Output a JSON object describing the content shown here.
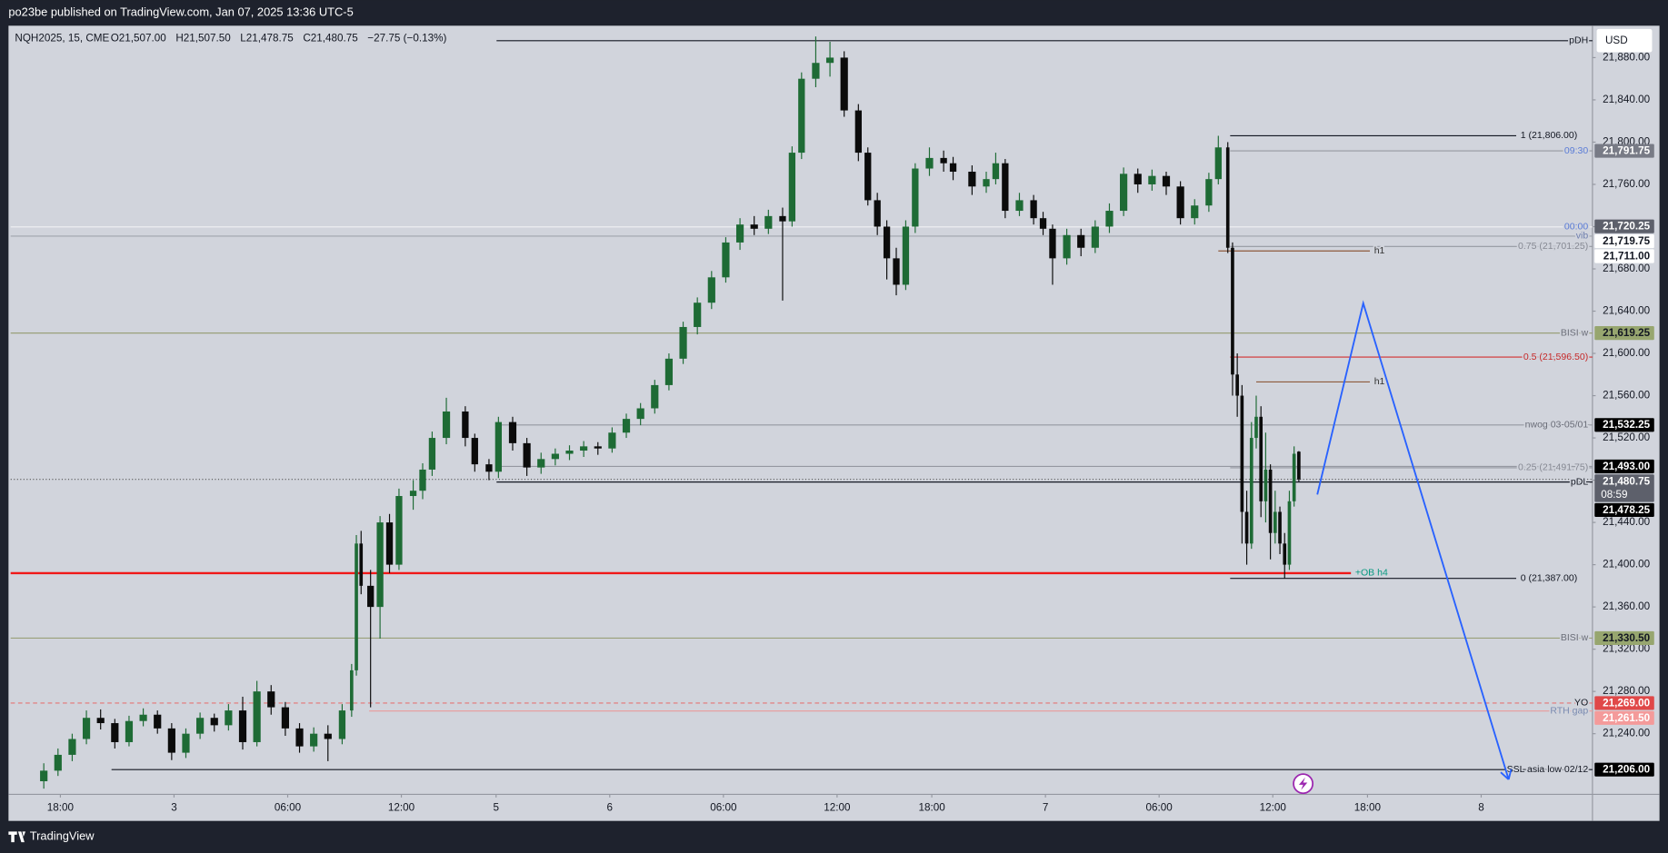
{
  "header": {
    "publisher": "po23be published on TradingView.com, Jan 07, 2025 13:36 UTC-5"
  },
  "footer": {
    "brand": "TradingView"
  },
  "chart_data": {
    "type": "candlestick",
    "symbol": "NQH2025, 15, CME",
    "ohlc_legend": [
      "O21,507.00",
      "H21,507.50",
      "L21,478.75",
      "C21,480.75",
      "−27.75 (−0.13%)"
    ],
    "currency": "USD",
    "up_color": "#1e6b35",
    "down_color": "#0b0b0b",
    "xlim": [
      0,
      334
    ],
    "xticks": [
      {
        "value": 10.5,
        "label": "18:00"
      },
      {
        "value": 34.5,
        "label": "3"
      },
      {
        "value": 58.5,
        "label": "06:00"
      },
      {
        "value": 82.5,
        "label": "12:00"
      },
      {
        "value": 102.5,
        "label": "5"
      },
      {
        "value": 126.5,
        "label": "6"
      },
      {
        "value": 150.5,
        "label": "06:00"
      },
      {
        "value": 174.5,
        "label": "12:00"
      },
      {
        "value": 194.5,
        "label": "18:00"
      },
      {
        "value": 218.5,
        "label": "7"
      },
      {
        "value": 242.5,
        "label": "06:00"
      },
      {
        "value": 266.5,
        "label": "12:00"
      },
      {
        "value": 286.5,
        "label": "18:00"
      },
      {
        "value": 310.5,
        "label": "8"
      }
    ],
    "ylim": [
      21182.6,
      21910.2
    ],
    "yticks": [
      {
        "value": 21240,
        "label": "21,240.00"
      },
      {
        "value": 21280,
        "label": "21,280.00"
      },
      {
        "value": 21320,
        "label": "21,320.00"
      },
      {
        "value": 21360,
        "label": "21,360.00"
      },
      {
        "value": 21400,
        "label": "21,400.00"
      },
      {
        "value": 21440,
        "label": "21,440.00"
      },
      {
        "value": 21480,
        "label": "21,480.00"
      },
      {
        "value": 21520,
        "label": "21,520.00"
      },
      {
        "value": 21560,
        "label": "21,560.00"
      },
      {
        "value": 21600,
        "label": "21,600.00"
      },
      {
        "value": 21640,
        "label": "21,640.00"
      },
      {
        "value": 21680,
        "label": "21,680.00"
      },
      {
        "value": 21720,
        "label": "21,720.00"
      },
      {
        "value": 21760,
        "label": "21,760.00"
      },
      {
        "value": 21800,
        "label": "21,800.00"
      },
      {
        "value": 21840,
        "label": "21,840.00"
      },
      {
        "value": 21880,
        "label": "21,880.00"
      }
    ],
    "x": [
      7,
      10,
      13,
      16,
      19,
      22,
      25,
      28,
      31,
      34,
      37,
      40,
      43,
      46,
      49,
      52,
      55,
      58,
      61,
      64,
      67,
      70,
      72,
      73,
      74,
      76,
      78,
      80,
      82,
      85,
      87,
      89,
      92,
      96,
      98,
      101,
      103,
      106,
      109,
      112,
      115,
      118,
      121,
      124,
      127,
      130,
      133,
      136,
      139,
      142,
      145,
      148,
      151,
      154,
      157,
      160,
      163,
      165,
      167,
      170,
      173,
      176,
      179,
      181,
      183,
      185,
      187,
      189,
      191,
      194,
      197,
      199,
      203,
      206,
      208,
      210,
      213,
      216,
      218,
      220,
      223,
      226,
      229,
      232,
      235,
      238,
      241,
      244,
      247,
      250,
      253,
      255,
      257,
      258,
      259,
      260,
      261,
      262,
      263,
      264,
      265,
      266,
      267,
      268,
      269,
      270,
      271,
      272
    ],
    "open": [
      21195,
      21205,
      21220,
      21235,
      21255,
      21250,
      21232,
      21252,
      21258,
      21245,
      21222,
      21240,
      21255,
      21248,
      21262,
      21232,
      21280,
      21265,
      21245,
      21228,
      21240,
      21235,
      21262,
      21300,
      21420,
      21380,
      21360,
      21440,
      21400,
      21465,
      21470,
      21490,
      21520,
      21545,
      21520,
      21495,
      21488,
      21535,
      21515,
      21492,
      21500,
      21505,
      21508,
      21512,
      21510,
      21525,
      21538,
      21548,
      21570,
      21595,
      21625,
      21648,
      21672,
      21705,
      21722,
      21718,
      21730,
      21725,
      21790,
      21860,
      21875,
      21880,
      21830,
      21790,
      21745,
      21720,
      21690,
      21665,
      21720,
      21775,
      21785,
      21780,
      21772,
      21758,
      21765,
      21780,
      21735,
      21745,
      21728,
      21718,
      21690,
      21712,
      21700,
      21720,
      21735,
      21770,
      21760,
      21768,
      21758,
      21728,
      21740,
      21765,
      21795,
      21700,
      21580,
      21560,
      21450,
      21420,
      21520,
      21540,
      21460,
      21490,
      21430,
      21450,
      21420,
      21400,
      21460,
      21507
    ],
    "high": [
      21212,
      21226,
      21240,
      21262,
      21263,
      21254,
      21257,
      21264,
      21262,
      21250,
      21245,
      21260,
      21259,
      21268,
      21275,
      21290,
      21286,
      21270,
      21250,
      21246,
      21248,
      21268,
      21306,
      21428,
      21432,
      21395,
      21446,
      21448,
      21472,
      21480,
      21496,
      21526,
      21558,
      21550,
      21524,
      21500,
      21540,
      21540,
      21520,
      21506,
      21510,
      21513,
      21517,
      21516,
      21530,
      21543,
      21553,
      21575,
      21600,
      21630,
      21653,
      21678,
      21710,
      21728,
      21730,
      21736,
      21738,
      21796,
      21866,
      21900,
      21895,
      21886,
      21836,
      21795,
      21752,
      21726,
      21700,
      21726,
      21780,
      21795,
      21792,
      21786,
      21778,
      21772,
      21790,
      21784,
      21752,
      21750,
      21734,
      21722,
      21718,
      21718,
      21726,
      21742,
      21776,
      21775,
      21774,
      21772,
      21763,
      21746,
      21771,
      21806,
      21800,
      21705,
      21600,
      21570,
      21470,
      21535,
      21560,
      21550,
      21525,
      21495,
      21470,
      21455,
      21430,
      21470,
      21512,
      21507.5
    ],
    "low": [
      21188,
      21200,
      21214,
      21230,
      21244,
      21226,
      21228,
      21247,
      21240,
      21215,
      21217,
      21235,
      21242,
      21243,
      21225,
      21228,
      21258,
      21238,
      21222,
      21223,
      21214,
      21230,
      21256,
      21295,
      21372,
      21265,
      21330,
      21392,
      21395,
      21452,
      21462,
      21484,
      21514,
      21512,
      21488,
      21480,
      21482,
      21508,
      21484,
      21486,
      21494,
      21499,
      21502,
      21504,
      21506,
      21520,
      21532,
      21543,
      21565,
      21590,
      21618,
      21642,
      21667,
      21698,
      21712,
      21713,
      21650,
      21720,
      21784,
      21852,
      21862,
      21824,
      21782,
      21740,
      21712,
      21670,
      21655,
      21660,
      21714,
      21768,
      21772,
      21764,
      21750,
      21752,
      21760,
      21728,
      21730,
      21722,
      21712,
      21665,
      21684,
      21692,
      21695,
      21714,
      21730,
      21752,
      21754,
      21750,
      21722,
      21722,
      21734,
      21760,
      21695,
      21560,
      21540,
      21420,
      21400,
      21415,
      21510,
      21445,
      21440,
      21405,
      21420,
      21410,
      21387,
      21395,
      21455,
      21478.75
    ],
    "close": [
      21205,
      21220,
      21235,
      21255,
      21250,
      21232,
      21252,
      21258,
      21245,
      21222,
      21240,
      21255,
      21248,
      21262,
      21232,
      21280,
      21265,
      21245,
      21228,
      21240,
      21235,
      21262,
      21300,
      21420,
      21380,
      21360,
      21440,
      21400,
      21465,
      21470,
      21490,
      21520,
      21545,
      21520,
      21495,
      21488,
      21535,
      21515,
      21492,
      21500,
      21505,
      21508,
      21512,
      21510,
      21525,
      21538,
      21548,
      21570,
      21595,
      21625,
      21648,
      21672,
      21705,
      21722,
      21718,
      21730,
      21725,
      21790,
      21860,
      21875,
      21880,
      21830,
      21790,
      21745,
      21720,
      21690,
      21665,
      21720,
      21775,
      21785,
      21780,
      21772,
      21758,
      21765,
      21780,
      21735,
      21745,
      21728,
      21718,
      21690,
      21712,
      21700,
      21720,
      21735,
      21770,
      21760,
      21768,
      21758,
      21728,
      21740,
      21765,
      21795,
      21700,
      21580,
      21560,
      21450,
      21420,
      21520,
      21540,
      21460,
      21490,
      21430,
      21450,
      21420,
      21400,
      21460,
      21505,
      21480.75
    ],
    "levels": [
      {
        "price": 21896,
        "from": 102.6,
        "to": 334,
        "color": "#131722",
        "label": "pDH",
        "label_color": "#131722"
      },
      {
        "price": 21806,
        "from": 257.5,
        "to": 317.9,
        "color": "#131722",
        "label": "1 (21,806.00)",
        "label_color": "#131722"
      },
      {
        "price": 21791.75,
        "from": 257.5,
        "to": 334,
        "color": "#9598a1",
        "label": "09:30",
        "label_color": "#5b7cd6"
      },
      {
        "price": 21719.75,
        "from": 0,
        "to": 334,
        "color": "#f0f1f4",
        "label": "00:00",
        "label_color": "#5b7cd6"
      },
      {
        "price": 21711,
        "from": 0,
        "to": 334,
        "color": "#a0a3ab",
        "label": "vib",
        "label_color": "#6f7fae"
      },
      {
        "price": 21701.25,
        "from": 257.5,
        "to": 334,
        "color": "#9598a1",
        "label": "0.75 (21,701.25)",
        "label_color": "#868993"
      },
      {
        "price": 21697,
        "from": 255,
        "to": 287,
        "color": "#8d5a3b",
        "label": "h1",
        "label_color": "#333333"
      },
      {
        "price": 21619.25,
        "from": 0,
        "to": 334,
        "color": "#9aa07a",
        "label": "BISI w",
        "label_color": "#6a6d78"
      },
      {
        "price": 21596.5,
        "from": 257.5,
        "to": 334,
        "color": "#d32f2f",
        "label": "0.5 (21,596.50)",
        "label_color": "#c62828"
      },
      {
        "price": 21573,
        "from": 263,
        "to": 287,
        "color": "#8d5a3b",
        "label": "h1",
        "label_color": "#333333"
      },
      {
        "price": 21532.25,
        "from": 102.6,
        "to": 334,
        "color": "#9598a1",
        "label": "nwog 03-05/01",
        "label_color": "#6a6d78"
      },
      {
        "price": 21493,
        "from": 102.6,
        "to": 334,
        "color": "#9598a1"
      },
      {
        "price": 21491.75,
        "from": 257.5,
        "to": 334,
        "color": "#9598a1",
        "label": "0.25 (21,491.75)",
        "label_color": "#868993"
      },
      {
        "price": 21480.75,
        "from": 0,
        "to": 334,
        "color": "#555555",
        "style": "dotted"
      },
      {
        "price": 21478.25,
        "from": 102.6,
        "to": 334,
        "color": "#131722",
        "label": "pDL",
        "label_color": "#131722"
      },
      {
        "price": 21392,
        "from": 0,
        "to": 283,
        "color": "#f01818",
        "width": 2,
        "label": "+OB h4",
        "label_color": "#089981"
      },
      {
        "price": 21387,
        "from": 257.5,
        "to": 317.9,
        "color": "#131722",
        "label": "0 (21,387.00)",
        "label_color": "#131722"
      },
      {
        "price": 21330.5,
        "from": 0,
        "to": 334,
        "color": "#9aa07a",
        "label": "BISI w",
        "label_color": "#6a6d78"
      },
      {
        "price": 21269,
        "from": 0,
        "to": 334,
        "color": "#e57373",
        "style": "dashed",
        "label": "YO",
        "label_color": "#131722"
      },
      {
        "price": 21261.5,
        "from": 75.7,
        "to": 334,
        "color": "#e89a9a",
        "label": "RTH gap",
        "label_color": "#7a8ab0"
      },
      {
        "price": 21206,
        "from": 21.3,
        "to": 334,
        "color": "#131722",
        "label": "SSL asia low 02/12",
        "label_color": "#131722"
      }
    ],
    "price_labels": [
      {
        "value": 21791.75,
        "label": "21,791.75",
        "bg": "#787b86",
        "fg": "#ffffff"
      },
      {
        "value": 21720.25,
        "label": "21,720.25",
        "bg": "#5d606b",
        "fg": "#ffffff"
      },
      {
        "value": 21719.75,
        "label": "21,719.75",
        "bg": "#ffffff",
        "fg": "#131722"
      },
      {
        "value": 21711,
        "label": "21,711.00",
        "bg": "#ffffff",
        "fg": "#131722"
      },
      {
        "value": 21619.25,
        "label": "21,619.25",
        "bg": "#97a66f",
        "fg": "#131722"
      },
      {
        "value": 21532.25,
        "label": "21,532.25",
        "bg": "#000000",
        "fg": "#ffffff"
      },
      {
        "value": 21493,
        "label": "21,493.00",
        "bg": "#000000",
        "fg": "#ffffff"
      },
      {
        "value": 21480.75,
        "label": "21,480.75",
        "sublabel": "08:59",
        "bg": "#5d606b",
        "fg": "#ffffff"
      },
      {
        "value": 21478.25,
        "label": "21,478.25",
        "bg": "#000000",
        "fg": "#ffffff"
      },
      {
        "value": 21330.5,
        "label": "21,330.50",
        "bg": "#97a66f",
        "fg": "#131722"
      },
      {
        "value": 21269,
        "label": "21,269.00",
        "bg": "#e04848",
        "fg": "#ffffff"
      },
      {
        "value": 21261.5,
        "label": "21,261.50",
        "bg": "#f49a9a",
        "fg": "#ffffff"
      },
      {
        "value": 21206,
        "label": "21,206.00",
        "bg": "#000000",
        "fg": "#ffffff"
      }
    ],
    "projection": {
      "color": "#2962ff",
      "x": [
        275.9,
        285.6,
        316.3
      ],
      "y": [
        21466.4,
        21647.5,
        21196.7
      ]
    }
  }
}
